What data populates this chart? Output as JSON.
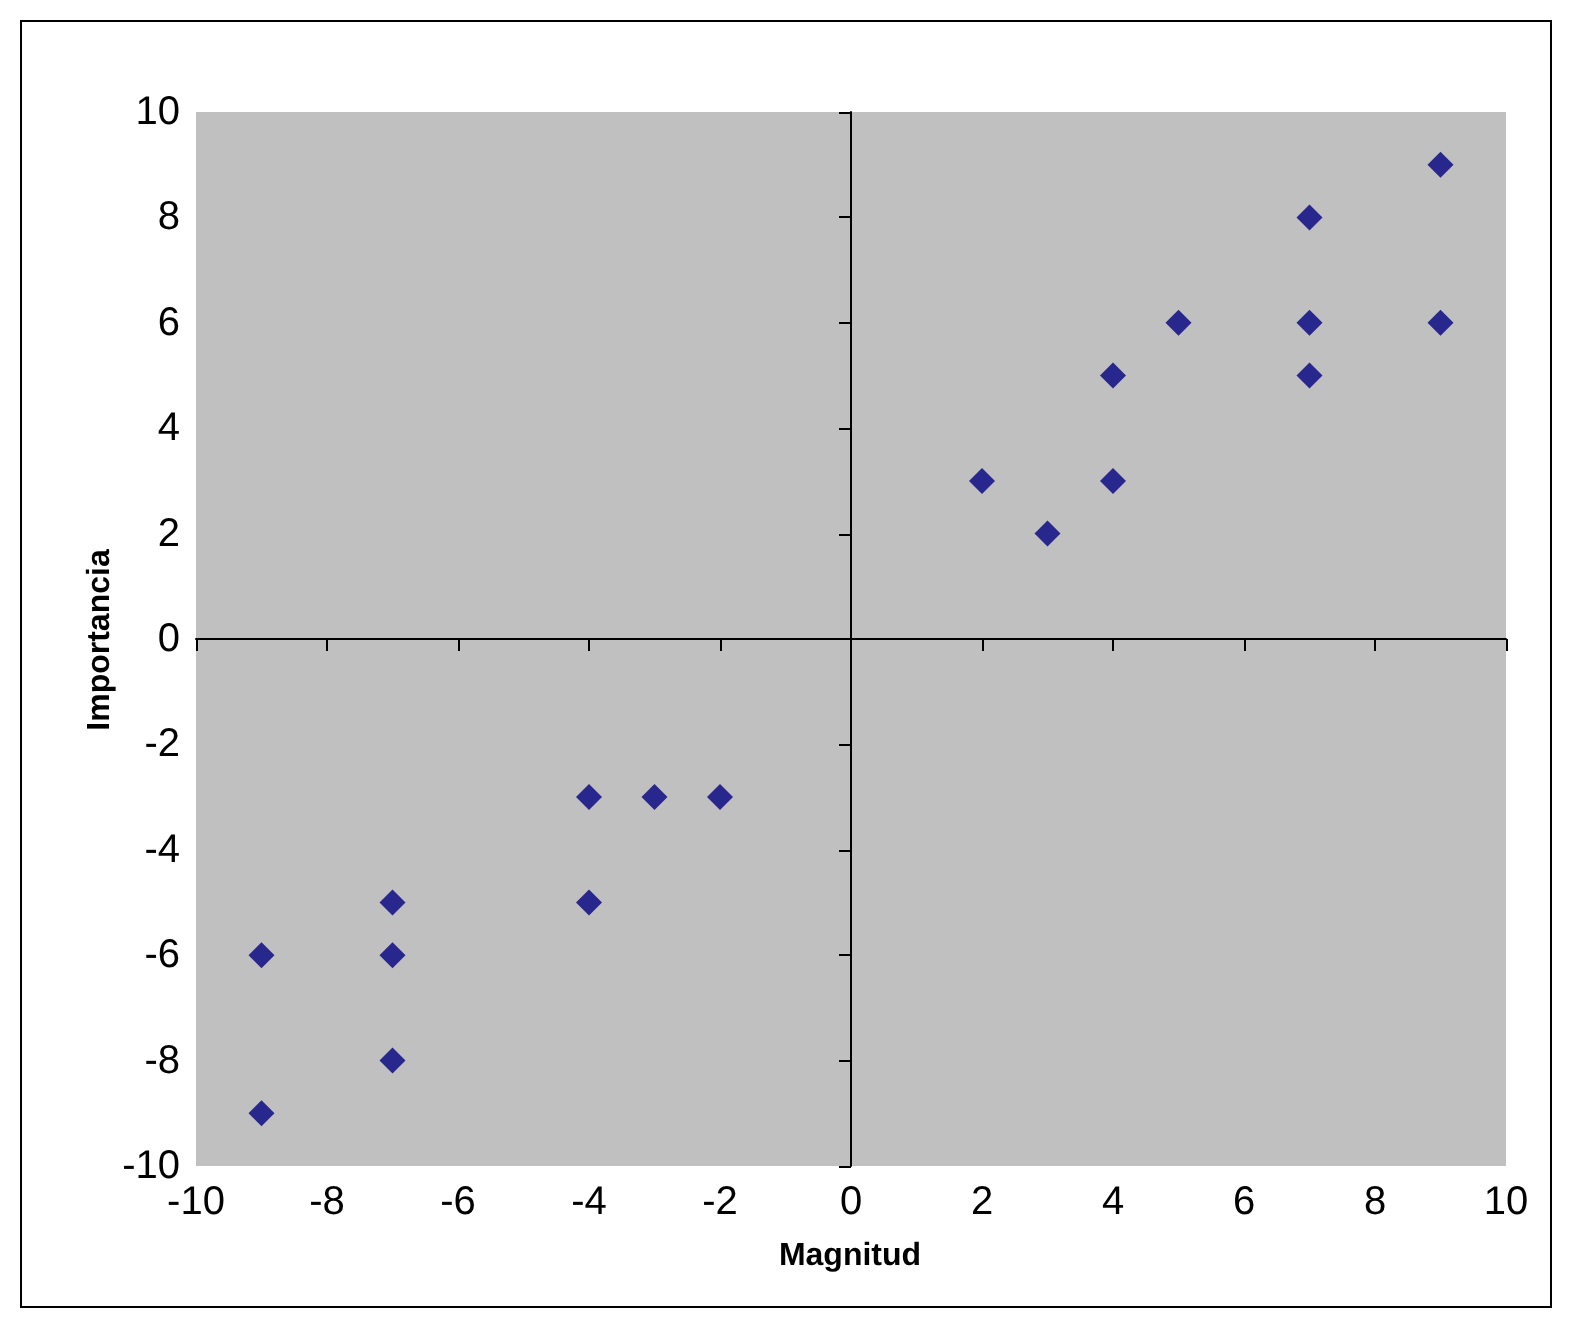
{
  "chart_data": {
    "type": "scatter",
    "xlabel": "Magnitud",
    "ylabel": "Importancia",
    "x": [
      2,
      3,
      4,
      4,
      5,
      7,
      7,
      7,
      9,
      9,
      -2,
      -3,
      -4,
      -4,
      -7,
      -7,
      -7,
      -9,
      -9
    ],
    "values": [
      3,
      2,
      5,
      3,
      6,
      8,
      6,
      5,
      9,
      6,
      -3,
      -3,
      -3,
      -5,
      -5,
      -6,
      -8,
      -6,
      -9
    ],
    "color": "#000080",
    "marker": "diamond",
    "xlim": [
      -10,
      10
    ],
    "xticks": [
      -10,
      -8,
      -6,
      -4,
      -2,
      0,
      2,
      4,
      6,
      8,
      10
    ],
    "ylim": [
      -10,
      10
    ],
    "yticks": [
      -10,
      -8,
      -6,
      -4,
      -2,
      0,
      2,
      4,
      6,
      8,
      10
    ]
  }
}
